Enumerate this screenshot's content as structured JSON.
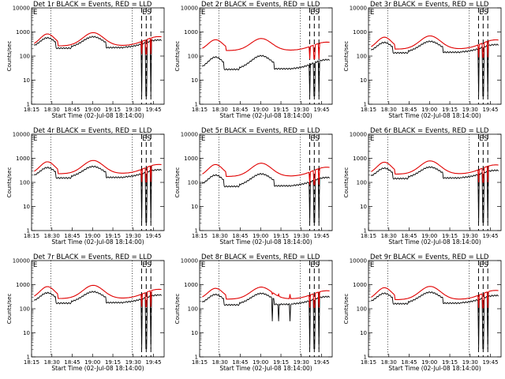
{
  "chart_data": [
    {
      "type": "line",
      "title": "Det 1r BLACK = Events, RED = LLD",
      "xlabel": "Start Time (02-Jul-08 18:14:00)",
      "ylabel": "Counts/sec",
      "series": [
        {
          "color": "#000000",
          "base": 250,
          "amp": 0.45,
          "mode": "step",
          "glitch": false
        },
        {
          "color": "#e00000",
          "base": 300,
          "amp": 0.55,
          "mode": "smooth",
          "glitch": false
        }
      ]
    },
    {
      "type": "line",
      "title": "Det 2r BLACK = Events, RED = LLD",
      "xlabel": "Start Time (02-Jul-08 18:14:00)",
      "ylabel": "Counts/sec",
      "series": [
        {
          "color": "#000000",
          "base": 33,
          "amp": 0.55,
          "mode": "step",
          "glitch": false
        },
        {
          "color": "#e00000",
          "base": 190,
          "amp": 0.5,
          "mode": "smooth",
          "glitch": false
        }
      ]
    },
    {
      "type": "line",
      "title": "Det 3r BLACK = Events, RED = LLD",
      "xlabel": "Start Time (02-Jul-08 18:14:00)",
      "ylabel": "Counts/sec",
      "series": [
        {
          "color": "#000000",
          "base": 160,
          "amp": 0.45,
          "mode": "step",
          "glitch": false
        },
        {
          "color": "#e00000",
          "base": 220,
          "amp": 0.55,
          "mode": "smooth",
          "glitch": false
        }
      ]
    },
    {
      "type": "line",
      "title": "Det 4r BLACK = Events, RED = LLD",
      "xlabel": "Start Time (02-Jul-08 18:14:00)",
      "ylabel": "Counts/sec",
      "series": [
        {
          "color": "#000000",
          "base": 180,
          "amp": 0.45,
          "mode": "step",
          "glitch": false
        },
        {
          "color": "#e00000",
          "base": 260,
          "amp": 0.55,
          "mode": "smooth",
          "glitch": false
        }
      ]
    },
    {
      "type": "line",
      "title": "Det 5r BLACK = Events, RED = LLD",
      "xlabel": "Start Time (02-Jul-08 18:14:00)",
      "ylabel": "Counts/sec",
      "series": [
        {
          "color": "#000000",
          "base": 80,
          "amp": 0.5,
          "mode": "step",
          "glitch": false
        },
        {
          "color": "#e00000",
          "base": 200,
          "amp": 0.55,
          "mode": "smooth",
          "glitch": false
        }
      ]
    },
    {
      "type": "line",
      "title": "Det 6r BLACK = Events, RED = LLD",
      "xlabel": "Start Time (02-Jul-08 18:14:00)",
      "ylabel": "Counts/sec",
      "series": [
        {
          "color": "#000000",
          "base": 170,
          "amp": 0.45,
          "mode": "step",
          "glitch": false
        },
        {
          "color": "#e00000",
          "base": 250,
          "amp": 0.55,
          "mode": "smooth",
          "glitch": false
        }
      ]
    },
    {
      "type": "line",
      "title": "Det 7r BLACK = Events, RED = LLD",
      "xlabel": "Start Time (02-Jul-08 18:14:00)",
      "ylabel": "Counts/sec",
      "series": [
        {
          "color": "#000000",
          "base": 200,
          "amp": 0.45,
          "mode": "step",
          "glitch": false
        },
        {
          "color": "#e00000",
          "base": 300,
          "amp": 0.55,
          "mode": "smooth",
          "glitch": false
        }
      ]
    },
    {
      "type": "line",
      "title": "Det 8r BLACK = Events, RED = LLD",
      "xlabel": "Start Time (02-Jul-08 18:14:00)",
      "ylabel": "Counts/sec",
      "series": [
        {
          "color": "#000000",
          "base": 170,
          "amp": 0.45,
          "mode": "step",
          "glitch": true
        },
        {
          "color": "#e00000",
          "base": 280,
          "amp": 0.5,
          "mode": "smooth",
          "glitch": true
        }
      ]
    },
    {
      "type": "line",
      "title": "Det 9r BLACK = Events, RED = LLD",
      "xlabel": "Start Time (02-Jul-08 18:14:00)",
      "ylabel": "Counts/sec",
      "series": [
        {
          "color": "#000000",
          "base": 190,
          "amp": 0.45,
          "mode": "step",
          "glitch": false
        },
        {
          "color": "#e00000",
          "base": 270,
          "amp": 0.55,
          "mode": "smooth",
          "glitch": false
        }
      ]
    }
  ],
  "x_tick_labels": [
    "18:15",
    "18:30",
    "18:45",
    "19:00",
    "19:15",
    "19:30",
    "19:45"
  ],
  "y_tick_labels": [
    "1",
    "10",
    "100",
    "1000",
    "10000"
  ],
  "marker_labels": [
    "E",
    "S"
  ],
  "ylim": [
    1,
    10000
  ],
  "y_scale": "log"
}
